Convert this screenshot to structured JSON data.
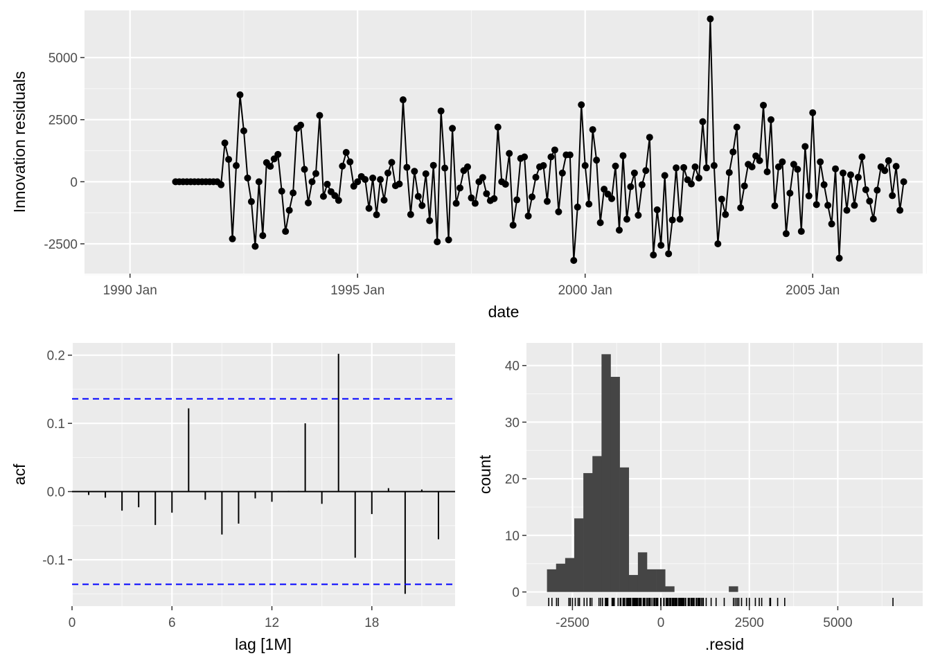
{
  "chart_data": [
    {
      "type": "line",
      "markers": true,
      "xlabel": "date",
      "ylabel": "Innovation residuals",
      "x_tick_labels": [
        "1990 Jan",
        "1995 Jan",
        "2000 Jan",
        "2005 Jan"
      ],
      "x_tick_years": [
        1990,
        1995,
        2000,
        2005
      ],
      "y_ticks": [
        -2500,
        0,
        2500,
        5000
      ],
      "y_tick_labels": [
        "-2500",
        "0",
        "2500",
        "5000"
      ],
      "xlim": [
        "1989 Jan",
        "2007 Jun"
      ],
      "ylim": [
        -3700,
        6900
      ],
      "grid": true,
      "x_start": "1991 Jan",
      "x_step": "1 month",
      "values": [
        0,
        0,
        0,
        0,
        0,
        0,
        0,
        0,
        0,
        0,
        0,
        0,
        -120,
        1560,
        900,
        -2300,
        650,
        3500,
        2050,
        150,
        -800,
        -2600,
        0,
        -2170,
        770,
        620,
        920,
        1100,
        -380,
        -2000,
        -1150,
        -450,
        2150,
        2280,
        500,
        -850,
        0,
        330,
        2670,
        -590,
        -100,
        -400,
        -560,
        -750,
        630,
        1180,
        800,
        -180,
        0,
        210,
        90,
        -1070,
        150,
        -1330,
        90,
        -740,
        350,
        780,
        -160,
        -90,
        3300,
        580,
        -1320,
        420,
        -590,
        -960,
        320,
        -1570,
        660,
        -2420,
        2850,
        550,
        -2340,
        2150,
        -870,
        -250,
        450,
        600,
        -650,
        -870,
        0,
        170,
        -480,
        -760,
        -680,
        2200,
        0,
        -100,
        1140,
        -1750,
        -730,
        940,
        1000,
        -1380,
        -610,
        180,
        600,
        650,
        -790,
        1000,
        1280,
        -1210,
        350,
        1080,
        1080,
        -3170,
        -1020,
        3100,
        650,
        -900,
        2100,
        870,
        -1650,
        -300,
        -500,
        -680,
        630,
        -1950,
        1050,
        -1510,
        -200,
        350,
        -1350,
        -120,
        450,
        1790,
        -2950,
        -1130,
        -2560,
        250,
        -2900,
        -1540,
        560,
        -1510,
        570,
        80,
        -90,
        600,
        150,
        2420,
        560,
        6560,
        650,
        -2500,
        -700,
        -1320,
        370,
        1200,
        2200,
        -1050,
        -170,
        700,
        600,
        1040,
        850,
        3080,
        400,
        2500,
        -970,
        600,
        800,
        -2090,
        -460,
        700,
        500,
        -2000,
        1420,
        -570,
        2780,
        -920,
        800,
        -120,
        -950,
        -1700,
        520,
        -3080,
        350,
        -1150,
        280,
        -950,
        180,
        1000,
        -320,
        -780,
        -1500,
        -340,
        600,
        450,
        850,
        -560,
        620,
        -1150,
        0
      ]
    },
    {
      "type": "bar",
      "variant": "acf-stem",
      "xlabel": "lag [1M]",
      "ylabel": "acf",
      "x_ticks": [
        0,
        6,
        12,
        18
      ],
      "x_tick_labels": [
        "0",
        "6",
        "12",
        "18"
      ],
      "y_ticks": [
        -0.1,
        0,
        0.1,
        0.2
      ],
      "y_tick_labels": [
        "-0.1",
        "0.0",
        "0.1",
        "0.2"
      ],
      "xlim": [
        0,
        23
      ],
      "ylim": [
        -0.168,
        0.218
      ],
      "confidence_bound": 0.136,
      "bound_color": "#0000ff",
      "lags": [
        1,
        2,
        3,
        4,
        5,
        6,
        7,
        8,
        9,
        10,
        11,
        12,
        13,
        14,
        15,
        16,
        17,
        18,
        19,
        20,
        21,
        22
      ],
      "values": [
        -0.005,
        -0.009,
        -0.028,
        -0.023,
        -0.049,
        -0.031,
        0.122,
        -0.012,
        -0.063,
        -0.047,
        -0.01,
        -0.015,
        0.001,
        0.1,
        -0.018,
        0.202,
        -0.097,
        -0.033,
        0.005,
        -0.15,
        0.003,
        -0.07
      ]
    },
    {
      "type": "bar",
      "variant": "histogram",
      "xlabel": ".resid",
      "ylabel": "count",
      "x_ticks": [
        -2500,
        0,
        2500,
        5000
      ],
      "x_tick_labels": [
        "-2500",
        "0",
        "2500",
        "5000"
      ],
      "y_ticks": [
        0,
        10,
        20,
        30,
        40
      ],
      "y_tick_labels": [
        "0",
        "10",
        "20",
        "30",
        "40"
      ],
      "xlim": [
        -3800,
        7400
      ],
      "ylim": [
        -2.5,
        44
      ],
      "bin_width": 257,
      "bin_start": -3220,
      "counts": [
        4,
        5,
        6,
        13,
        21,
        24,
        42,
        38,
        22,
        3,
        7,
        4,
        4,
        1,
        0,
        0,
        0,
        0,
        0,
        0,
        1
      ],
      "bar_color": "#454545",
      "rug": true
    }
  ]
}
